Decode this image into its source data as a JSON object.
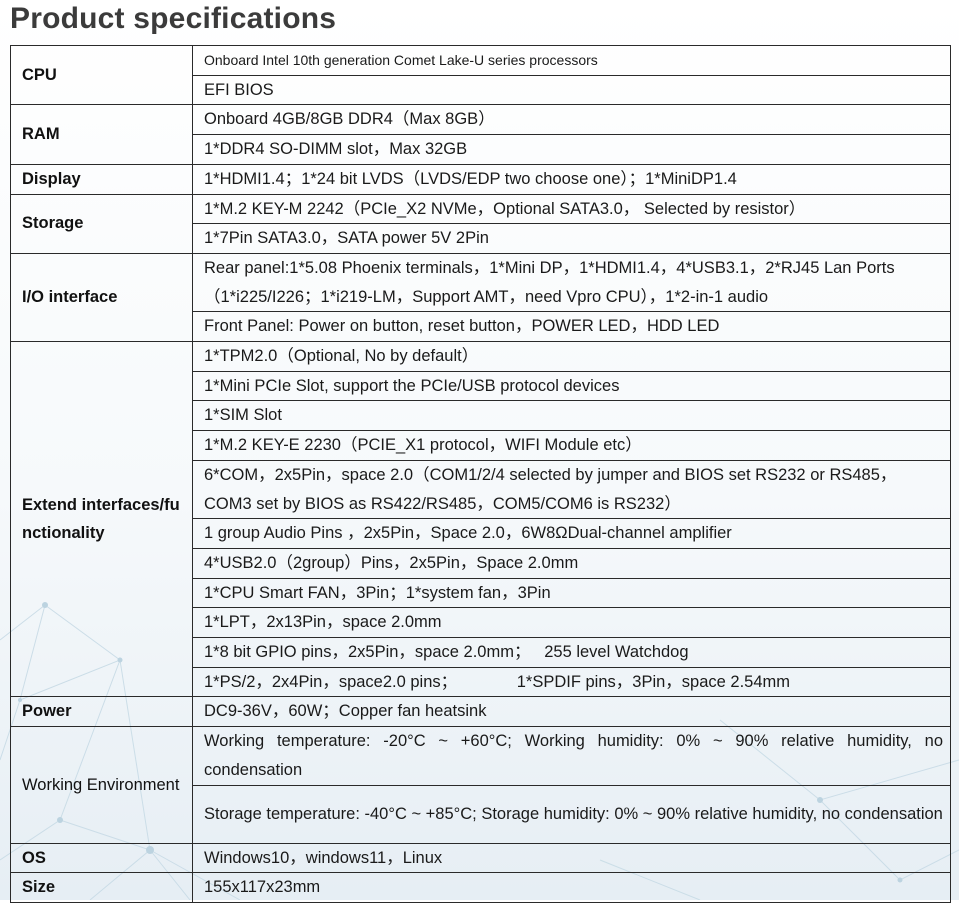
{
  "title": "Product specifications",
  "rows": [
    {
      "label": "CPU",
      "values": [
        "Onboard Intel 10th generation Comet Lake-U series processors",
        "EFI BIOS"
      ]
    },
    {
      "label": "RAM",
      "values": [
        "Onboard 4GB/8GB DDR4（Max 8GB）",
        "1*DDR4 SO-DIMM slot，Max 32GB"
      ]
    },
    {
      "label": "Display",
      "values": [
        "1*HDMI1.4；1*24 bit LVDS（LVDS/EDP two choose one）；1*MiniDP1.4"
      ]
    },
    {
      "label": "Storage",
      "values": [
        "1*M.2 KEY-M 2242（PCIe_X2 NVMe，Optional SATA3.0，  Selected by resistor）",
        "1*7Pin SATA3.0，SATA power 5V 2Pin"
      ]
    },
    {
      "label": "I/O interface",
      "values": [
        "Rear panel:1*5.08 Phoenix terminals，1*Mini DP，1*HDMI1.4，4*USB3.1，2*RJ45 Lan Ports  （1*i225/I226；1*i219-LM，Support AMT，need Vpro CPU），1*2-in-1 audio",
        "Front Panel: Power on button, reset button，POWER LED，HDD LED"
      ]
    },
    {
      "label": "Extend interfaces/functionality",
      "values": [
        "1*TPM2.0（Optional, No by default）",
        "1*Mini PCIe Slot, support the PCIe/USB protocol devices",
        "1*SIM Slot",
        "1*M.2 KEY-E 2230（PCIE_X1 protocol，WIFI Module etc）",
        "6*COM，2x5Pin，space 2.0（COM1/2/4 selected by jumper and BIOS set RS232 or RS485，COM3 set by BIOS as RS422/RS485，COM5/COM6 is RS232）",
        "1 group Audio Pins ，2x5Pin，Space 2.0，6W8ΩDual-channel amplifier",
        "4*USB2.0（2group）Pins，2x5Pin，Space 2.0mm",
        "1*CPU Smart FAN，3Pin；1*system fan，3Pin",
        "1*LPT，2x13Pin，space 2.0mm",
        "1*8 bit GPIO pins，2x5Pin，space 2.0mm；   255 level Watchdog",
        "1*PS/2，2x4Pin，space2.0 pins；             1*SPDIF pins，3Pin，space 2.54mm"
      ]
    },
    {
      "label": "Power",
      "values": [
        "DC9-36V，60W；Copper fan heatsink"
      ]
    },
    {
      "label": "Working Environment",
      "values": [
        "Working temperature: -20°C ~ +60°C; Working humidity: 0% ~ 90% relative humidity, no condensation",
        "Storage temperature: -40°C ~ +85°C; Storage humidity: 0% ~ 90% relative humidity, no condensation"
      ]
    },
    {
      "label": "OS",
      "values": [
        "Windows10，windows11，Linux"
      ]
    },
    {
      "label": "Size",
      "values": [
        "155x117x23mm"
      ]
    }
  ]
}
